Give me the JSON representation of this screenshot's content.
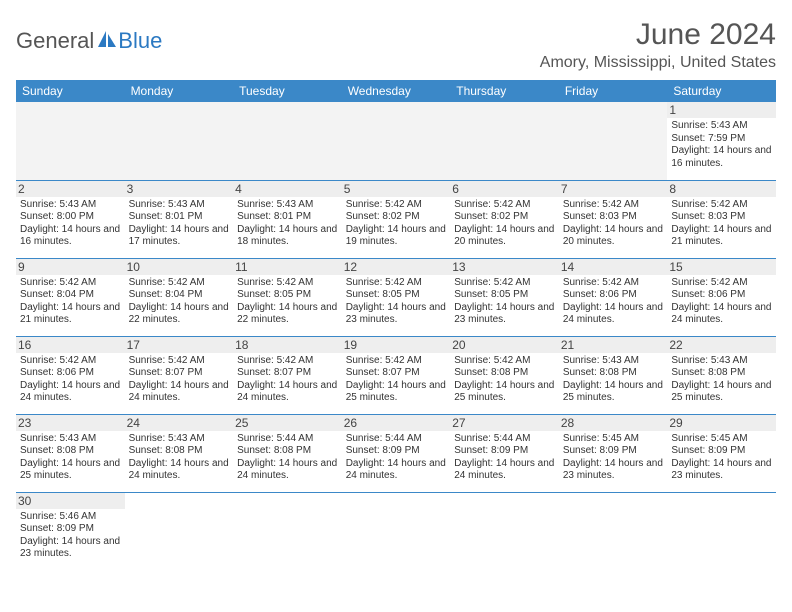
{
  "logo": {
    "part1": "General",
    "part2": "Blue"
  },
  "title": "June 2024",
  "location": "Amory, Mississippi, United States",
  "colors": {
    "header_bg": "#3b88c8",
    "header_text": "#ffffff",
    "border": "#3b88c8",
    "daynum_bg": "#eeeeee",
    "logo_blue": "#2b79c2",
    "text": "#333333"
  },
  "weekdays": [
    "Sunday",
    "Monday",
    "Tuesday",
    "Wednesday",
    "Thursday",
    "Friday",
    "Saturday"
  ],
  "weeks": [
    [
      null,
      null,
      null,
      null,
      null,
      null,
      {
        "d": "1",
        "sr": "5:43 AM",
        "ss": "7:59 PM",
        "dl": "14 hours and 16 minutes."
      }
    ],
    [
      {
        "d": "2",
        "sr": "5:43 AM",
        "ss": "8:00 PM",
        "dl": "14 hours and 16 minutes."
      },
      {
        "d": "3",
        "sr": "5:43 AM",
        "ss": "8:01 PM",
        "dl": "14 hours and 17 minutes."
      },
      {
        "d": "4",
        "sr": "5:43 AM",
        "ss": "8:01 PM",
        "dl": "14 hours and 18 minutes."
      },
      {
        "d": "5",
        "sr": "5:42 AM",
        "ss": "8:02 PM",
        "dl": "14 hours and 19 minutes."
      },
      {
        "d": "6",
        "sr": "5:42 AM",
        "ss": "8:02 PM",
        "dl": "14 hours and 20 minutes."
      },
      {
        "d": "7",
        "sr": "5:42 AM",
        "ss": "8:03 PM",
        "dl": "14 hours and 20 minutes."
      },
      {
        "d": "8",
        "sr": "5:42 AM",
        "ss": "8:03 PM",
        "dl": "14 hours and 21 minutes."
      }
    ],
    [
      {
        "d": "9",
        "sr": "5:42 AM",
        "ss": "8:04 PM",
        "dl": "14 hours and 21 minutes."
      },
      {
        "d": "10",
        "sr": "5:42 AM",
        "ss": "8:04 PM",
        "dl": "14 hours and 22 minutes."
      },
      {
        "d": "11",
        "sr": "5:42 AM",
        "ss": "8:05 PM",
        "dl": "14 hours and 22 minutes."
      },
      {
        "d": "12",
        "sr": "5:42 AM",
        "ss": "8:05 PM",
        "dl": "14 hours and 23 minutes."
      },
      {
        "d": "13",
        "sr": "5:42 AM",
        "ss": "8:05 PM",
        "dl": "14 hours and 23 minutes."
      },
      {
        "d": "14",
        "sr": "5:42 AM",
        "ss": "8:06 PM",
        "dl": "14 hours and 24 minutes."
      },
      {
        "d": "15",
        "sr": "5:42 AM",
        "ss": "8:06 PM",
        "dl": "14 hours and 24 minutes."
      }
    ],
    [
      {
        "d": "16",
        "sr": "5:42 AM",
        "ss": "8:06 PM",
        "dl": "14 hours and 24 minutes."
      },
      {
        "d": "17",
        "sr": "5:42 AM",
        "ss": "8:07 PM",
        "dl": "14 hours and 24 minutes."
      },
      {
        "d": "18",
        "sr": "5:42 AM",
        "ss": "8:07 PM",
        "dl": "14 hours and 24 minutes."
      },
      {
        "d": "19",
        "sr": "5:42 AM",
        "ss": "8:07 PM",
        "dl": "14 hours and 25 minutes."
      },
      {
        "d": "20",
        "sr": "5:42 AM",
        "ss": "8:08 PM",
        "dl": "14 hours and 25 minutes."
      },
      {
        "d": "21",
        "sr": "5:43 AM",
        "ss": "8:08 PM",
        "dl": "14 hours and 25 minutes."
      },
      {
        "d": "22",
        "sr": "5:43 AM",
        "ss": "8:08 PM",
        "dl": "14 hours and 25 minutes."
      }
    ],
    [
      {
        "d": "23",
        "sr": "5:43 AM",
        "ss": "8:08 PM",
        "dl": "14 hours and 25 minutes."
      },
      {
        "d": "24",
        "sr": "5:43 AM",
        "ss": "8:08 PM",
        "dl": "14 hours and 24 minutes."
      },
      {
        "d": "25",
        "sr": "5:44 AM",
        "ss": "8:08 PM",
        "dl": "14 hours and 24 minutes."
      },
      {
        "d": "26",
        "sr": "5:44 AM",
        "ss": "8:09 PM",
        "dl": "14 hours and 24 minutes."
      },
      {
        "d": "27",
        "sr": "5:44 AM",
        "ss": "8:09 PM",
        "dl": "14 hours and 24 minutes."
      },
      {
        "d": "28",
        "sr": "5:45 AM",
        "ss": "8:09 PM",
        "dl": "14 hours and 23 minutes."
      },
      {
        "d": "29",
        "sr": "5:45 AM",
        "ss": "8:09 PM",
        "dl": "14 hours and 23 minutes."
      }
    ],
    [
      {
        "d": "30",
        "sr": "5:46 AM",
        "ss": "8:09 PM",
        "dl": "14 hours and 23 minutes."
      },
      null,
      null,
      null,
      null,
      null,
      null
    ]
  ],
  "labels": {
    "sunrise": "Sunrise:",
    "sunset": "Sunset:",
    "daylight": "Daylight:"
  }
}
